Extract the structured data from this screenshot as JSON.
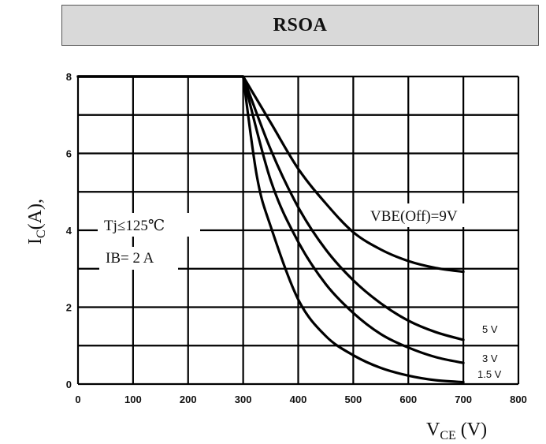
{
  "title": "RSOA",
  "chart_data": {
    "type": "line",
    "title": "RSOA",
    "xlabel_main": "V",
    "xlabel_sub": "CE",
    "xlabel_unit": " (V)",
    "ylabel_main": "I",
    "ylabel_sub": "C",
    "ylabel_unit": "(A),",
    "xlim": [
      0,
      800
    ],
    "ylim": [
      0,
      8
    ],
    "x_ticks": [
      0,
      100,
      200,
      300,
      400,
      500,
      600,
      700,
      800
    ],
    "x_tick_labels": [
      "0",
      "100",
      "200",
      "300",
      "400",
      "500",
      "600",
      "700",
      "800"
    ],
    "y_ticks": [
      0,
      2,
      4,
      6,
      8
    ],
    "y_tick_labels": [
      "0",
      "2",
      "4",
      "6",
      "8"
    ],
    "grid": true,
    "annotations": {
      "tj": "Tj≤125℃",
      "ib": "IB= 2 A",
      "vbe": "VBE(Off)=9V"
    },
    "series": [
      {
        "name": "VBE(Off)=9V",
        "x": [
          0,
          300,
          350,
          400,
          450,
          500,
          550,
          600,
          650,
          700
        ],
        "y": [
          8,
          8,
          6.8,
          5.6,
          4.7,
          3.95,
          3.5,
          3.2,
          3.02,
          2.92
        ]
      },
      {
        "name": "5 V",
        "x": [
          0,
          300,
          350,
          400,
          450,
          500,
          550,
          600,
          650,
          700
        ],
        "y": [
          8,
          8,
          6.1,
          4.6,
          3.5,
          2.7,
          2.1,
          1.65,
          1.35,
          1.15
        ]
      },
      {
        "name": "3 V",
        "x": [
          0,
          300,
          350,
          400,
          450,
          500,
          550,
          600,
          650,
          700
        ],
        "y": [
          8,
          8,
          5.3,
          3.7,
          2.6,
          1.85,
          1.3,
          0.95,
          0.7,
          0.55
        ]
      },
      {
        "name": "1.5 V",
        "x": [
          0,
          300,
          325,
          350,
          400,
          450,
          500,
          550,
          600,
          650,
          700
        ],
        "y": [
          8,
          8,
          5.4,
          4.1,
          2.2,
          1.25,
          0.75,
          0.42,
          0.22,
          0.1,
          0.05
        ]
      }
    ],
    "curve_labels": [
      "5 V",
      "3 V",
      "1.5 V"
    ]
  }
}
